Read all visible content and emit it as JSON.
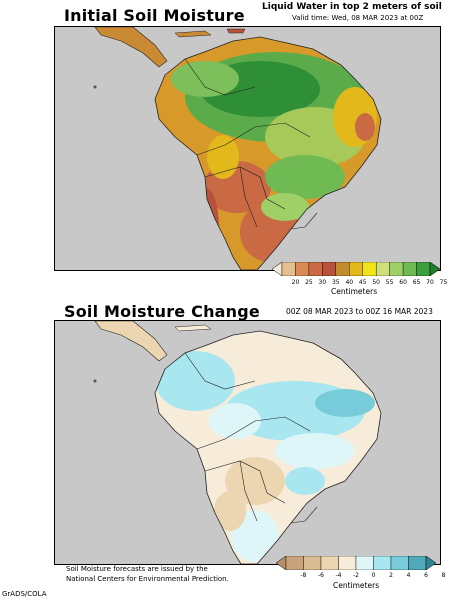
{
  "top_panel": {
    "title": "Initial Soil Moisture",
    "header_line1": "Liquid Water in top 2 meters of soil",
    "header_line2": "Valid time: Wed, 08 MAR 2023 at 00Z",
    "colorbar": {
      "ticks": [
        "20",
        "25",
        "30",
        "35",
        "40",
        "45",
        "50",
        "55",
        "60",
        "65",
        "70",
        "75"
      ],
      "colors": [
        "#f4ead8",
        "#e5c08f",
        "#d98b53",
        "#c96a45",
        "#b9523d",
        "#c48a2e",
        "#e3b81a",
        "#f1e51a",
        "#cfe07a",
        "#9fcf67",
        "#6fba53",
        "#3f9e3c",
        "#1f7f2f"
      ],
      "unit": "Centimeters"
    }
  },
  "bottom_panel": {
    "title": "Soil Moisture Change",
    "header_line": "00Z 08 MAR 2023 to 00Z 16 MAR 2023",
    "colorbar": {
      "ticks": [
        "-8",
        "-6",
        "-4",
        "-2",
        "0",
        "2",
        "4",
        "6",
        "8"
      ],
      "colors": [
        "#b78f68",
        "#c9a47a",
        "#dbbb92",
        "#ecd6b2",
        "#f7ecd9",
        "#dff6f8",
        "#a8e6f0",
        "#78cbd8",
        "#4fa9b8",
        "#2d8594"
      ],
      "unit": "Centimeters"
    }
  },
  "footer": {
    "note_line1": "Soil Moisture forecasts are issued by the",
    "note_line2": "National Centers for Environmental Prediction.",
    "credit": "GrADS/COLA"
  },
  "map_colors": {
    "ocean": "#c8c8c8",
    "boundary": "#222222"
  }
}
